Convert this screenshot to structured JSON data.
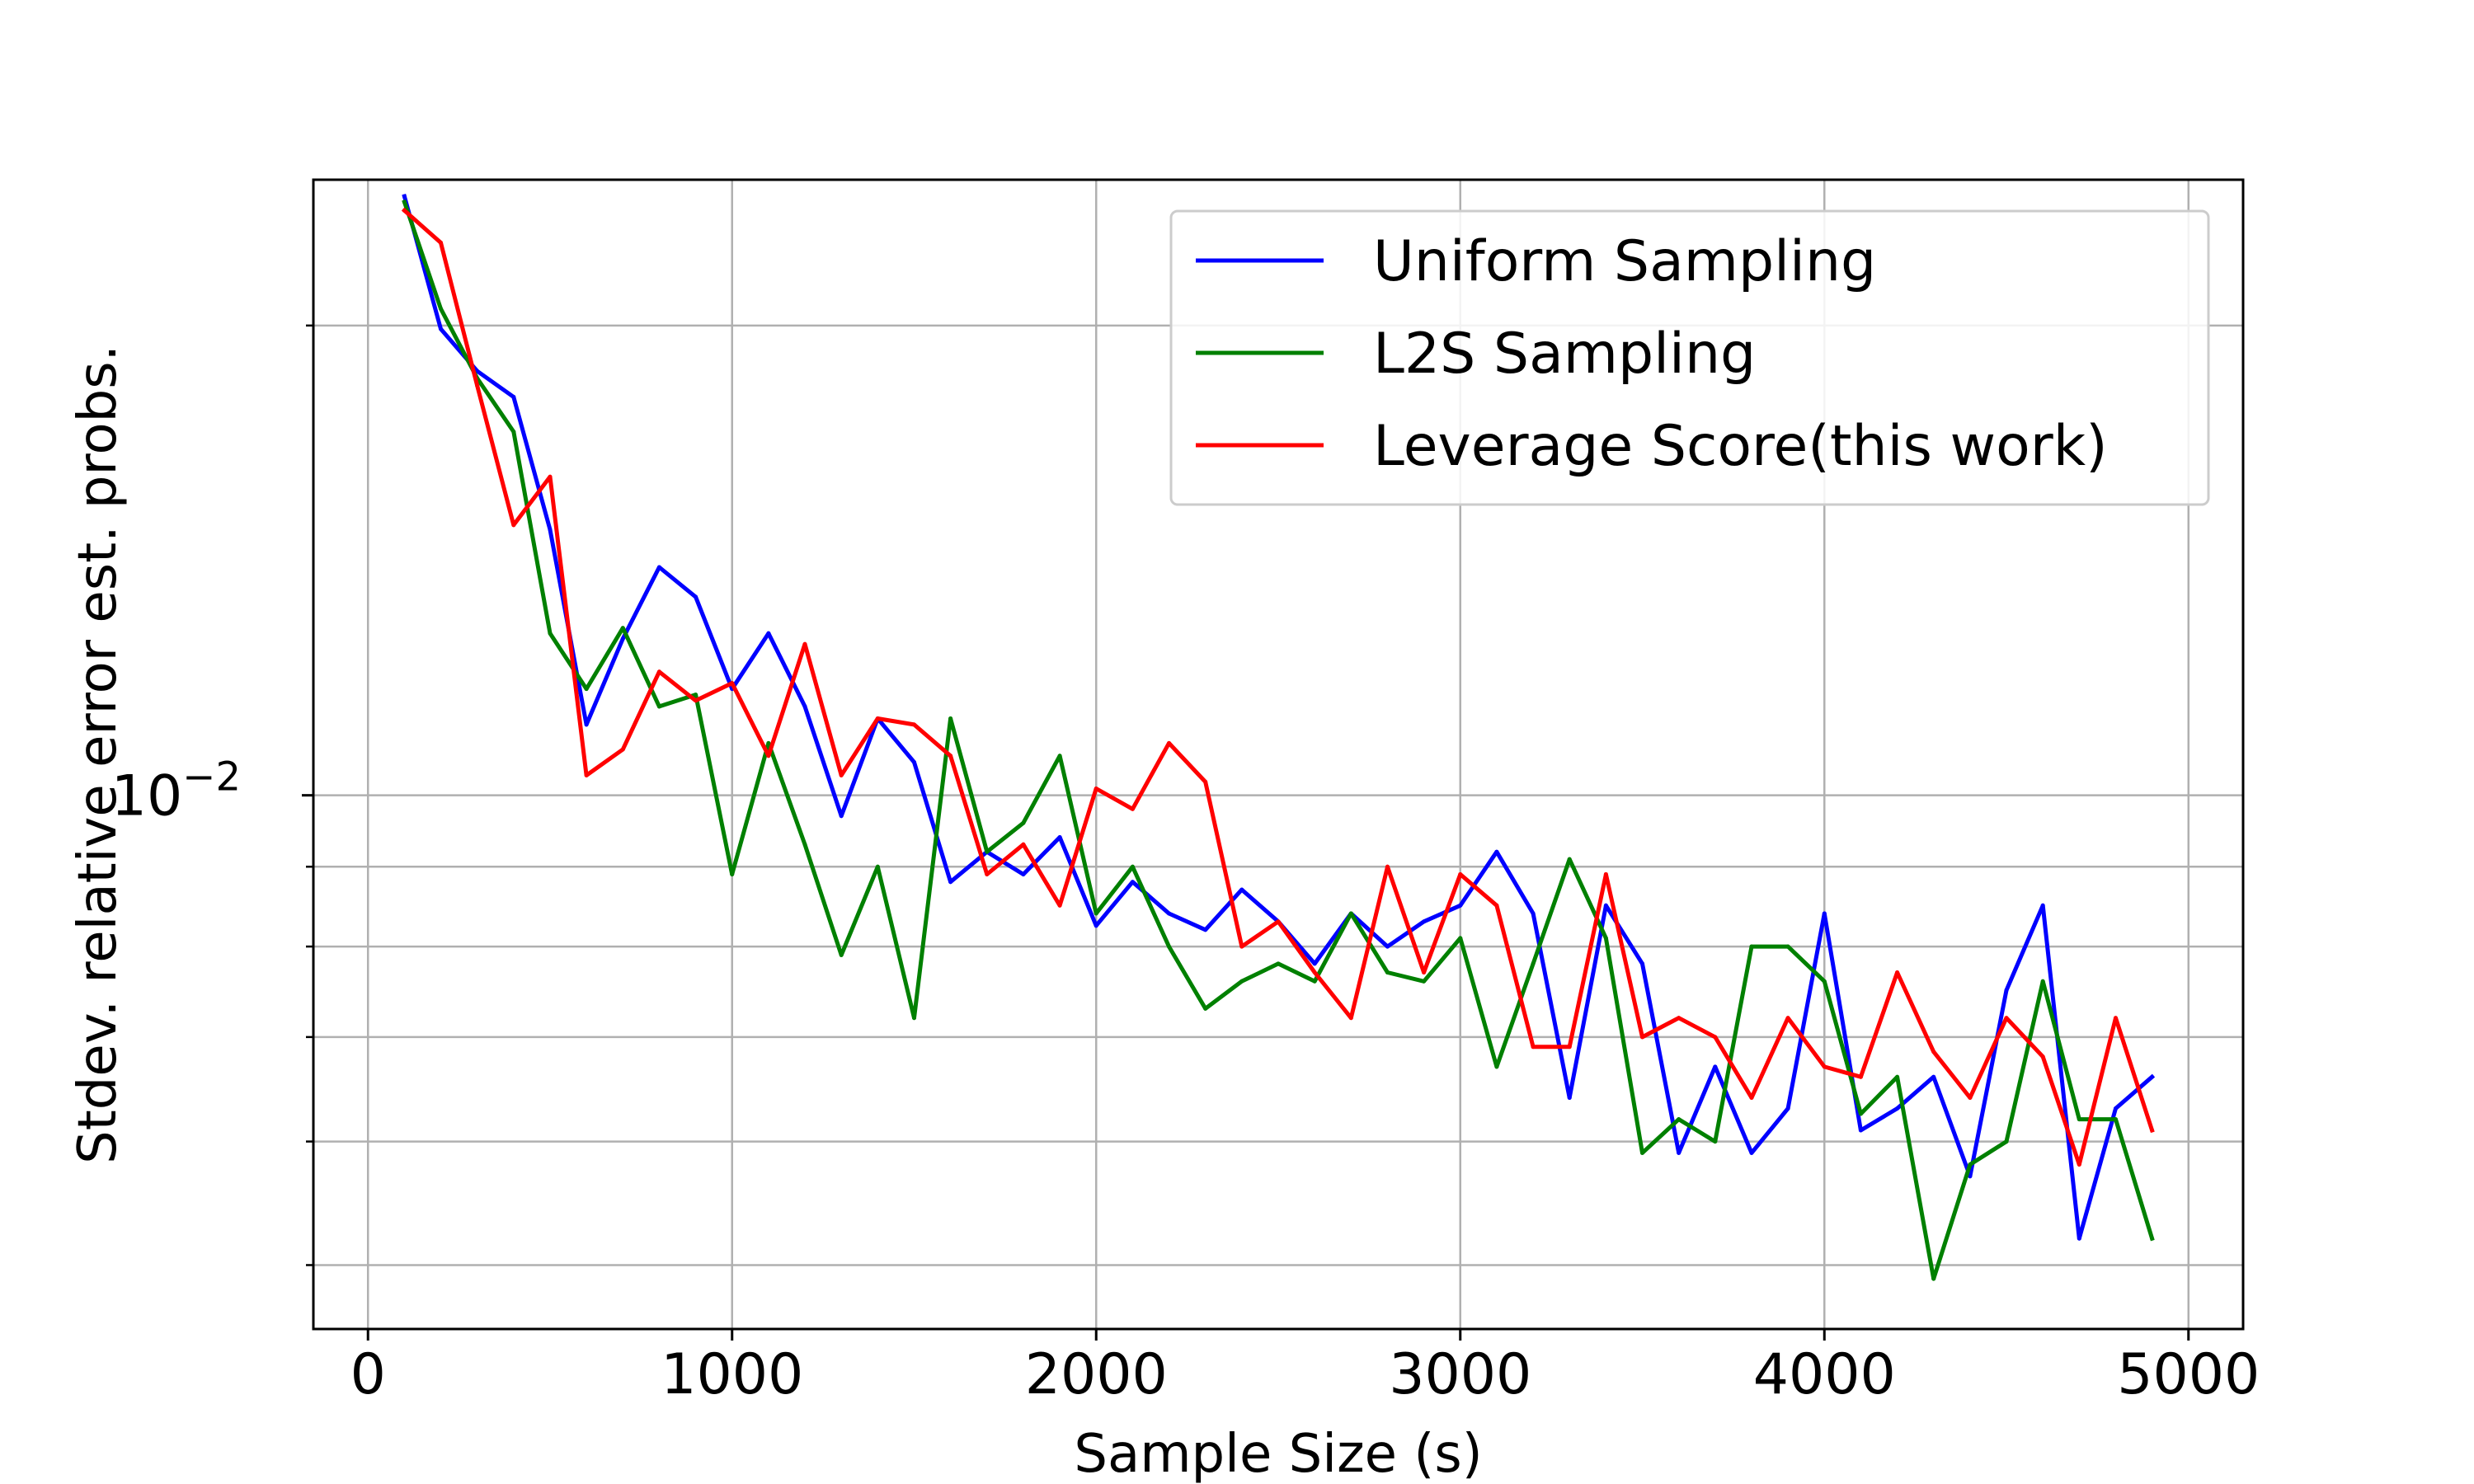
{
  "chart_data": {
    "type": "line",
    "xlabel": "Sample Size (s)",
    "ylabel": "Stdev. relative error est. probs.",
    "yscale": "log",
    "grid": true,
    "legend_position": "top-right",
    "xlim": [
      -150,
      5150
    ],
    "ylim": [
      0.00455,
      0.0248
    ],
    "x_ticks": [
      {
        "value": 0,
        "label": "0"
      },
      {
        "value": 1000,
        "label": "1000"
      },
      {
        "value": 2000,
        "label": "2000"
      },
      {
        "value": 3000,
        "label": "3000"
      },
      {
        "value": 4000,
        "label": "4000"
      },
      {
        "value": 5000,
        "label": "5000"
      }
    ],
    "y_major_ticks": [
      {
        "value": 0.01,
        "base": "10",
        "exponent": "−2"
      }
    ],
    "y_minor_ticks": [
      0.005,
      0.006,
      0.007,
      0.008,
      0.009,
      0.02
    ],
    "x": [
      100,
      200,
      300,
      400,
      500,
      600,
      700,
      800,
      900,
      1000,
      1100,
      1200,
      1300,
      1400,
      1500,
      1600,
      1700,
      1800,
      1900,
      2000,
      2100,
      2200,
      2300,
      2400,
      2500,
      2600,
      2700,
      2800,
      2900,
      3000,
      3100,
      3200,
      3300,
      3400,
      3500,
      3600,
      3700,
      3800,
      3900,
      4000,
      4100,
      4200,
      4300,
      4400,
      4500,
      4600,
      4700,
      4800,
      4900
    ],
    "series": [
      {
        "name": "Uniform Sampling",
        "color": "#0000ff",
        "values": [
          0.0242,
          0.0199,
          0.0187,
          0.018,
          0.0148,
          0.0111,
          0.0126,
          0.014,
          0.0134,
          0.0117,
          0.0127,
          0.0114,
          0.0097,
          0.0112,
          0.0105,
          0.0088,
          0.0092,
          0.0089,
          0.0094,
          0.00825,
          0.0088,
          0.0084,
          0.0082,
          0.0087,
          0.0083,
          0.0078,
          0.0084,
          0.008,
          0.0083,
          0.0085,
          0.0092,
          0.0084,
          0.0064,
          0.0085,
          0.0078,
          0.0059,
          0.0067,
          0.0059,
          0.0063,
          0.0084,
          0.0061,
          0.0063,
          0.0066,
          0.0057,
          0.0075,
          0.0085,
          0.0052,
          0.0063,
          0.0066
        ]
      },
      {
        "name": "L2S Sampling",
        "color": "#008000",
        "values": [
          0.024,
          0.0205,
          0.0185,
          0.0171,
          0.0127,
          0.0117,
          0.0128,
          0.0114,
          0.0116,
          0.0089,
          0.0108,
          0.0093,
          0.0079,
          0.009,
          0.0072,
          0.0112,
          0.0092,
          0.0096,
          0.0106,
          0.0084,
          0.009,
          0.008,
          0.0073,
          0.0076,
          0.0078,
          0.0076,
          0.0084,
          0.0077,
          0.0076,
          0.0081,
          0.0067,
          0.0078,
          0.0091,
          0.0081,
          0.0059,
          0.0062,
          0.006,
          0.008,
          0.008,
          0.0076,
          0.00625,
          0.0066,
          0.0049,
          0.0058,
          0.006,
          0.0076,
          0.0062,
          0.0062,
          0.0052
        ]
      },
      {
        "name": "Leverage Score(this work)",
        "color": "#ff0000",
        "values": [
          0.0237,
          0.0226,
          0.0183,
          0.0149,
          0.016,
          0.0103,
          0.0107,
          0.012,
          0.0115,
          0.0118,
          0.0106,
          0.0125,
          0.0103,
          0.0112,
          0.0111,
          0.0106,
          0.0089,
          0.0093,
          0.0085,
          0.0101,
          0.0098,
          0.0108,
          0.0102,
          0.008,
          0.0083,
          0.0077,
          0.0072,
          0.009,
          0.0077,
          0.0089,
          0.0085,
          0.0069,
          0.0069,
          0.0089,
          0.007,
          0.0072,
          0.007,
          0.0064,
          0.0072,
          0.0067,
          0.0066,
          0.0077,
          0.00685,
          0.0064,
          0.0072,
          0.0068,
          0.0058,
          0.0072,
          0.0061
        ]
      }
    ]
  }
}
